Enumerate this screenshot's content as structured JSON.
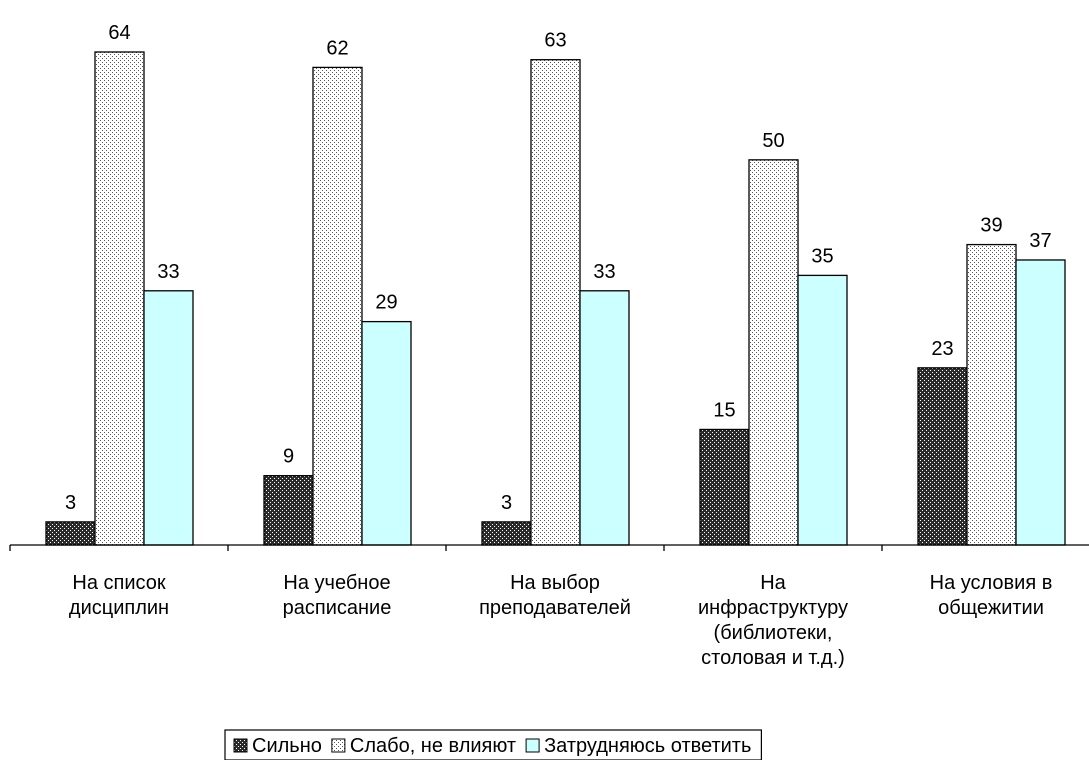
{
  "chart_data": {
    "type": "bar",
    "title": "",
    "xlabel": "",
    "ylabel": "",
    "ylim": [
      0,
      64
    ],
    "grid": false,
    "legend_position": "bottom",
    "categories": [
      [
        "На список",
        "дисциплин"
      ],
      [
        "На учебное",
        "расписание"
      ],
      [
        "На выбор",
        "преподавателей"
      ],
      [
        "На",
        "инфраструктуру",
        "(библиотеки,",
        "столовая и т.д.)"
      ],
      [
        "На условия в",
        "общежитии"
      ]
    ],
    "series": [
      {
        "name": "Сильно",
        "values": [
          3,
          9,
          3,
          15,
          23
        ],
        "pattern": "dark-check",
        "color": "#000000"
      },
      {
        "name": "Слабо, не влияют",
        "values": [
          64,
          62,
          63,
          50,
          39
        ],
        "pattern": "light-dots",
        "color": "#ffffff"
      },
      {
        "name": "Затрудняюсь ответить",
        "values": [
          33,
          29,
          33,
          35,
          37
        ],
        "pattern": "solid",
        "color": "#ccffff"
      }
    ]
  }
}
